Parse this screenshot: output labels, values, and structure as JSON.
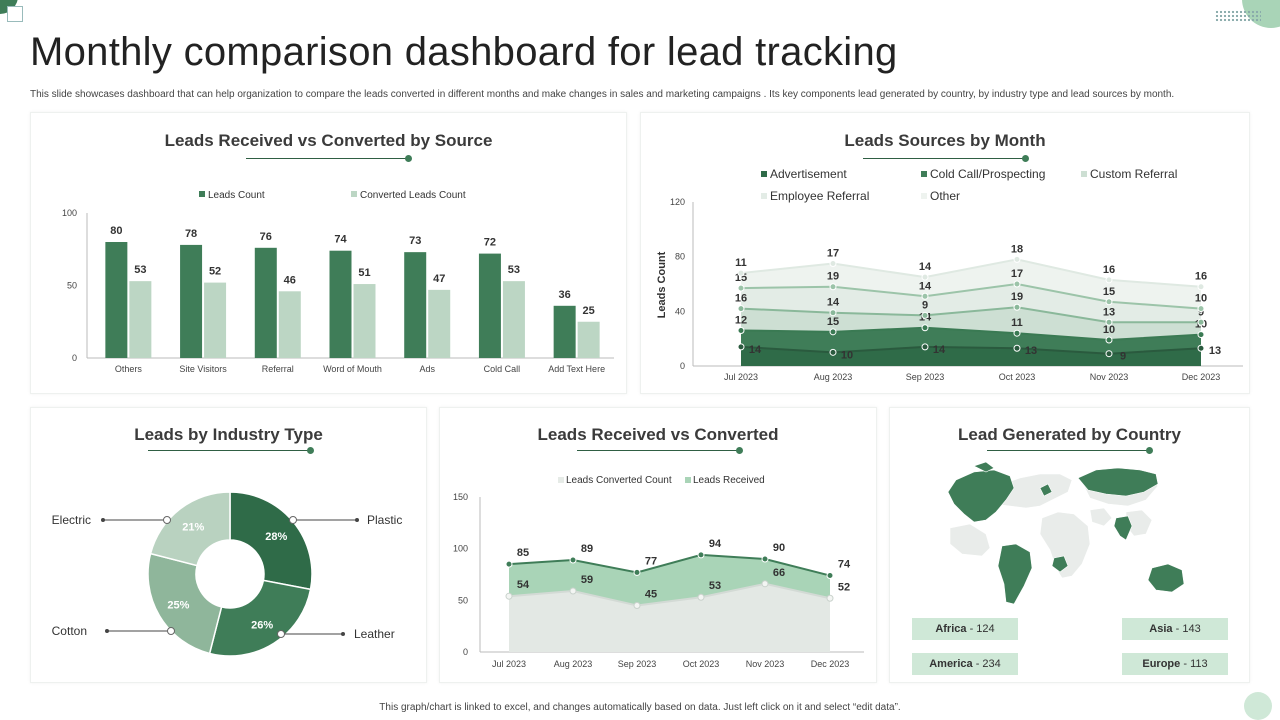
{
  "header": {
    "title": "Monthly comparison dashboard for lead tracking",
    "description": "This slide showcases dashboard that can help organization to compare the leads converted in different months and make changes in sales and marketing campaigns . Its key components lead generated by country, by industry type and lead sources by month."
  },
  "footer": {
    "note": "This graph/chart is linked to excel, and changes automatically based on data. Just left click on it and select “edit data”."
  },
  "colors": {
    "dark": "#2f6b48",
    "mid": "#3f7d58",
    "light": "#bcd6c4",
    "pale": "#e3ece6",
    "accent": "#a9d4b7"
  },
  "chart_data": [
    {
      "id": "source",
      "type": "bar",
      "title": "Leads Received vs Converted by Source",
      "categories": [
        "Others",
        "Site Visitors",
        "Referral",
        "Word of Mouth",
        "Ads",
        "Cold Call",
        "Add Text Here"
      ],
      "series": [
        {
          "name": "Leads Count",
          "values": [
            80,
            78,
            76,
            74,
            73,
            72,
            36
          ]
        },
        {
          "name": "Converted Leads Count",
          "values": [
            53,
            52,
            46,
            51,
            47,
            53,
            25
          ]
        }
      ],
      "ylim": [
        0,
        100
      ],
      "yticks": [
        "0",
        "50",
        "100"
      ]
    },
    {
      "id": "month",
      "type": "area",
      "title": "Leads Sources by Month",
      "ylabel": "Leads Count",
      "categories": [
        "Jul 2023",
        "Aug 2023",
        "Sep 2023",
        "Oct 2023",
        "Nov 2023",
        "Dec 2023"
      ],
      "series": [
        {
          "name": "Advertisement",
          "values": [
            14,
            10,
            14,
            13,
            9,
            13
          ]
        },
        {
          "name": "Cold Call/Prospecting",
          "values": [
            12,
            15,
            14,
            11,
            10,
            10
          ]
        },
        {
          "name": "Custom Referral",
          "values": [
            16,
            14,
            9,
            19,
            13,
            9
          ]
        },
        {
          "name": "Employee Referral",
          "values": [
            15,
            19,
            14,
            17,
            15,
            10
          ]
        },
        {
          "name": "Other",
          "values": [
            11,
            17,
            14,
            18,
            16,
            16
          ]
        }
      ],
      "ylim": [
        0,
        120
      ],
      "yticks": [
        "0",
        "40",
        "80",
        "120"
      ]
    },
    {
      "id": "industry",
      "type": "pie",
      "title": "Leads by Industry Type",
      "labels": [
        "Plastic",
        "Leather",
        "Cotton",
        "Electric"
      ],
      "values": [
        28,
        26,
        25,
        21
      ],
      "value_labels": [
        "28%",
        "26%",
        "25%",
        "21%"
      ]
    },
    {
      "id": "converted",
      "type": "area",
      "title": "Leads Received vs Converted",
      "categories": [
        "Jul 2023",
        "Aug 2023",
        "Sep 2023",
        "Oct 2023",
        "Nov 2023",
        "Dec 2023"
      ],
      "series": [
        {
          "name": "Leads Converted Count",
          "values": [
            54,
            59,
            45,
            53,
            66,
            52
          ]
        },
        {
          "name": "Leads Received",
          "values": [
            85,
            89,
            77,
            94,
            90,
            74
          ]
        }
      ],
      "ylim": [
        0,
        150
      ],
      "yticks": [
        "0",
        "50",
        "100",
        "150"
      ]
    },
    {
      "id": "country",
      "type": "map",
      "title": "Lead Generated by Country",
      "regions": [
        {
          "name": "Africa",
          "value": "124"
        },
        {
          "name": "Asia",
          "value": "143"
        },
        {
          "name": "America",
          "value": "234"
        },
        {
          "name": "Europe",
          "value": "113"
        }
      ]
    }
  ]
}
